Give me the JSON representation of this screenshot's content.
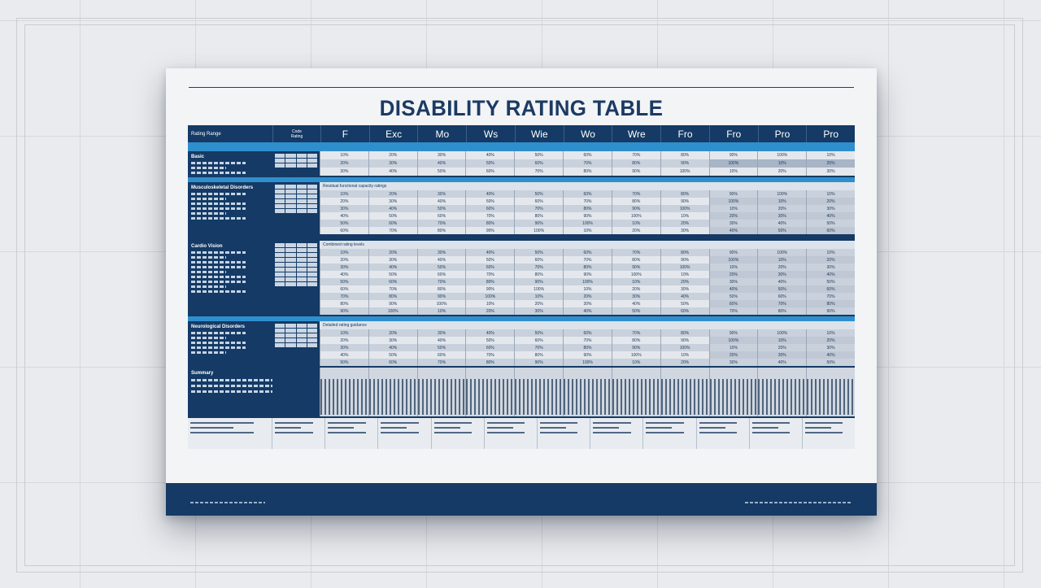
{
  "document": {
    "title": "DISABILITY RATING TABLE"
  },
  "table": {
    "corner_label": "Rating Range",
    "sub_header": [
      "Code",
      "Rating"
    ],
    "columns": [
      "F",
      "Exc",
      "Mo",
      "Ws",
      "Wie",
      "Wo",
      "Wre",
      "Fro",
      "Fro",
      "Pro",
      "Pro"
    ],
    "groups": [
      {
        "title": "Basic",
        "caption": ""
      },
      {
        "title": "Musculoskeletal Disorders",
        "caption": "Residual functional capacity ratings"
      },
      {
        "title": "Cardio Vision",
        "caption": "Combined rating levels"
      },
      {
        "title": "Neurological Disorders",
        "caption": "Detailed rating guidance"
      }
    ],
    "bar_section_title": "Summary",
    "cell_values": [
      "10%",
      "20%",
      "30%",
      "40%",
      "50%",
      "60%",
      "70%",
      "80%",
      "90%",
      "100%"
    ]
  },
  "colors": {
    "navy": "#143a65",
    "accent_blue": "#2f8fcd",
    "row_light": "#e4e8ed",
    "row_dark": "#c9d1dc"
  }
}
